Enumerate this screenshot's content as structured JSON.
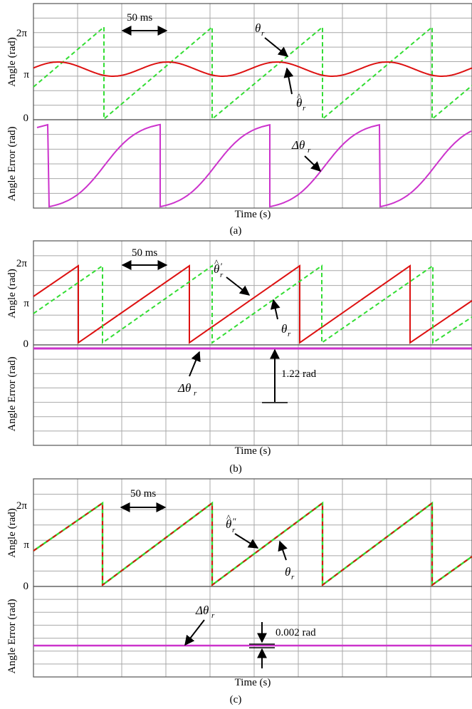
{
  "colors": {
    "theta_r": "#33dd33",
    "theta_hat": "#dd1111",
    "error": "#cc33cc",
    "grid": "#a8a8a8",
    "frame": "#555555"
  },
  "chart_data": [
    {
      "panel": "(a)",
      "type": "line",
      "top": {
        "ylabel": "Angle (rad)",
        "yticks": [
          "0",
          "π",
          "2π"
        ],
        "ylim": [
          0,
          6.8
        ],
        "series": [
          {
            "name": "θr",
            "style": "dashed",
            "color": "#33dd33",
            "period_ms": 100,
            "offset_ms": 0,
            "range": [
              0,
              6.28
            ]
          },
          {
            "name": "θ̂r",
            "style": "solid",
            "color": "#dd1111",
            "mean": 2.75,
            "amplitude": 0.38,
            "period_ms": 100
          }
        ],
        "annotations": [
          "50 ms",
          "θr",
          "θ̂r"
        ]
      },
      "bottom": {
        "ylabel": "Angle Error (rad)",
        "yticks": [
          "0"
        ],
        "series": [
          {
            "name": "Δθr",
            "style": "solid",
            "color": "#cc33cc",
            "shape": "sawtooth-sigmoid",
            "period_ms": 100
          }
        ],
        "annotations": [
          "Δθr"
        ]
      },
      "xlabel": "Time (s)",
      "caption": "(a)"
    },
    {
      "panel": "(b)",
      "type": "line",
      "top": {
        "ylabel": "Angle (rad)",
        "yticks": [
          "0",
          "π",
          "2π"
        ],
        "ylim": [
          0,
          6.8
        ],
        "series": [
          {
            "name": "θ̂′r",
            "style": "solid",
            "color": "#dd1111",
            "period_ms": 100,
            "range": [
              0,
              6.28
            ]
          },
          {
            "name": "θr",
            "style": "dashed",
            "color": "#33dd33",
            "period_ms": 100,
            "range": [
              0,
              6.28
            ],
            "lag_rad": 1.22
          }
        ],
        "annotations": [
          "50 ms",
          "θ̂′r",
          "θr"
        ]
      },
      "bottom": {
        "ylabel": "Angle Error (rad)",
        "yticks": [
          "0"
        ],
        "series": [
          {
            "name": "Δθr",
            "style": "solid",
            "color": "#cc33cc",
            "value": 1.22
          }
        ],
        "annotations": [
          "Δθr",
          "1.22 rad"
        ]
      },
      "xlabel": "Time (s)",
      "caption": "(b)"
    },
    {
      "panel": "(c)",
      "type": "line",
      "top": {
        "ylabel": "Angle (rad)",
        "yticks": [
          "0",
          "π",
          "2π"
        ],
        "ylim": [
          0,
          6.8
        ],
        "series": [
          {
            "name": "θ̂″r",
            "style": "solid",
            "color": "#dd1111",
            "period_ms": 100,
            "range": [
              0,
              6.28
            ]
          },
          {
            "name": "θr",
            "style": "dashed",
            "color": "#33dd33",
            "period_ms": 100,
            "range": [
              0,
              6.28
            ]
          }
        ],
        "annotations": [
          "50 ms",
          "θ̂″r",
          "θr"
        ]
      },
      "bottom": {
        "ylabel": "Angle Error (rad)",
        "series": [
          {
            "name": "Δθr",
            "style": "solid",
            "color": "#cc33cc",
            "value": 0.002
          }
        ],
        "annotations": [
          "Δθr",
          "0.002 rad"
        ]
      },
      "xlabel": "Time (s)",
      "caption": "(c)"
    }
  ],
  "labels": {
    "angle": "Angle (rad)",
    "error": "Angle Error (rad)",
    "time": "Time (s)",
    "ms50": "50 ms",
    "tick_0": "0",
    "tick_pi": "π",
    "tick_2pi": "2π",
    "b_val": "1.22 rad",
    "c_val": "0.002 rad",
    "cap_a": "(a)",
    "cap_b": "(b)",
    "cap_c": "(c)",
    "theta": "θ",
    "dtheta": "Δθ",
    "sub_r": "r"
  }
}
